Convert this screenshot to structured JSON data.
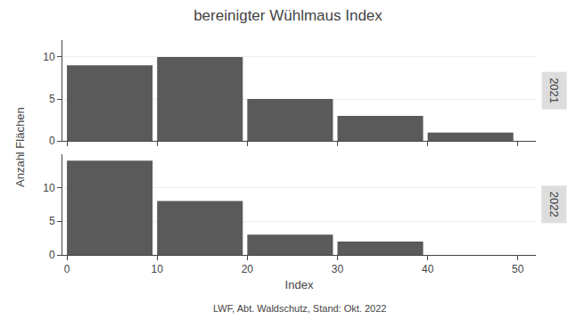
{
  "chart_data": [
    {
      "type": "bar",
      "title": "bereinigter Wühlmaus Index",
      "ylabel": "Anzahl Flächen",
      "x": [
        4.75,
        14.75,
        24.75,
        34.75,
        44.75
      ],
      "series": [
        {
          "name": "2021",
          "color": "#5a5a5a",
          "values": [
            9,
            10,
            5,
            3,
            1
          ]
        }
      ],
      "xlim": [
        -0.5,
        52
      ],
      "xticks": [
        0,
        10,
        20,
        30,
        40,
        50
      ],
      "ylim": [
        0,
        12
      ],
      "yticks": [
        0,
        5,
        10
      ],
      "grid": true,
      "tick_labels": "y"
    },
    {
      "type": "bar",
      "xlabel": "Index",
      "annotations": [
        "LWF, Abt. Waldschutz, Stand: Okt. 2022"
      ],
      "x": [
        4.75,
        14.75,
        24.75,
        34.75,
        44.75
      ],
      "series": [
        {
          "name": "2022",
          "color": "#5a5a5a",
          "values": [
            14,
            8,
            3,
            2,
            0
          ]
        }
      ],
      "xlim": [
        -0.5,
        52
      ],
      "xticks": [
        0,
        10,
        20,
        30,
        40,
        50
      ],
      "ylim": [
        0,
        15
      ],
      "yticks": [
        0,
        5,
        10
      ],
      "grid": true
    }
  ]
}
